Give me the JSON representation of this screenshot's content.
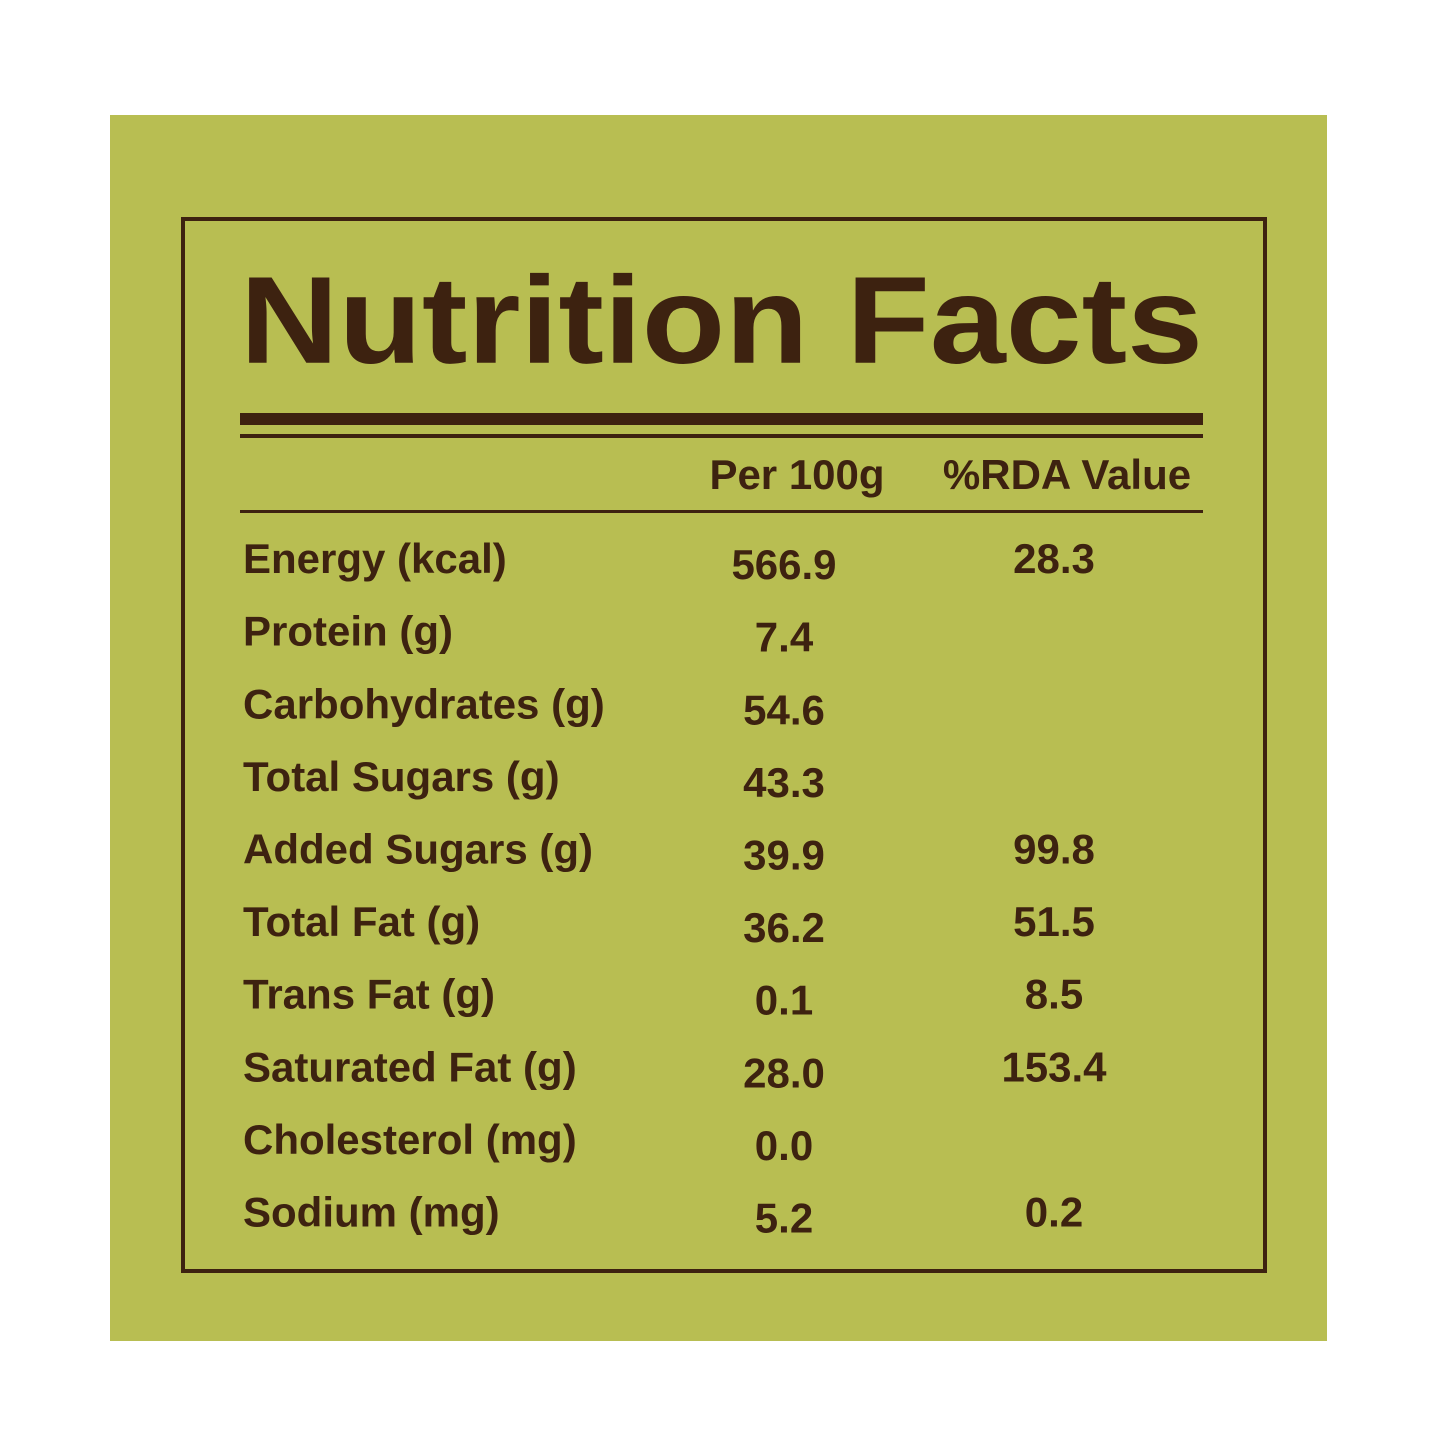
{
  "title": "Nutrition Facts",
  "columns": [
    "Per 100g",
    "%RDA Value"
  ],
  "rows": [
    {
      "nutrient": "Energy (kcal)",
      "per_100g": "566.9",
      "rda": "28.3"
    },
    {
      "nutrient": "Protein (g)",
      "per_100g": "7.4",
      "rda": null
    },
    {
      "nutrient": "Carbohydrates (g)",
      "per_100g": "54.6",
      "rda": null
    },
    {
      "nutrient": "Total Sugars (g)",
      "per_100g": "43.3",
      "rda": null
    },
    {
      "nutrient": "Added Sugars (g)",
      "per_100g": "39.9",
      "rda": "99.8"
    },
    {
      "nutrient": "Total Fat (g)",
      "per_100g": "36.2",
      "rda": "51.5"
    },
    {
      "nutrient": "Trans Fat (g)",
      "per_100g": "0.1",
      "rda": "8.5"
    },
    {
      "nutrient": "Saturated Fat (g)",
      "per_100g": "28.0",
      "rda": "153.4"
    },
    {
      "nutrient": "Cholesterol (mg)",
      "per_100g": "0.0",
      "rda": null
    },
    {
      "nutrient": "Sodium (mg)",
      "per_100g": "5.2",
      "rda": "0.2"
    }
  ]
}
